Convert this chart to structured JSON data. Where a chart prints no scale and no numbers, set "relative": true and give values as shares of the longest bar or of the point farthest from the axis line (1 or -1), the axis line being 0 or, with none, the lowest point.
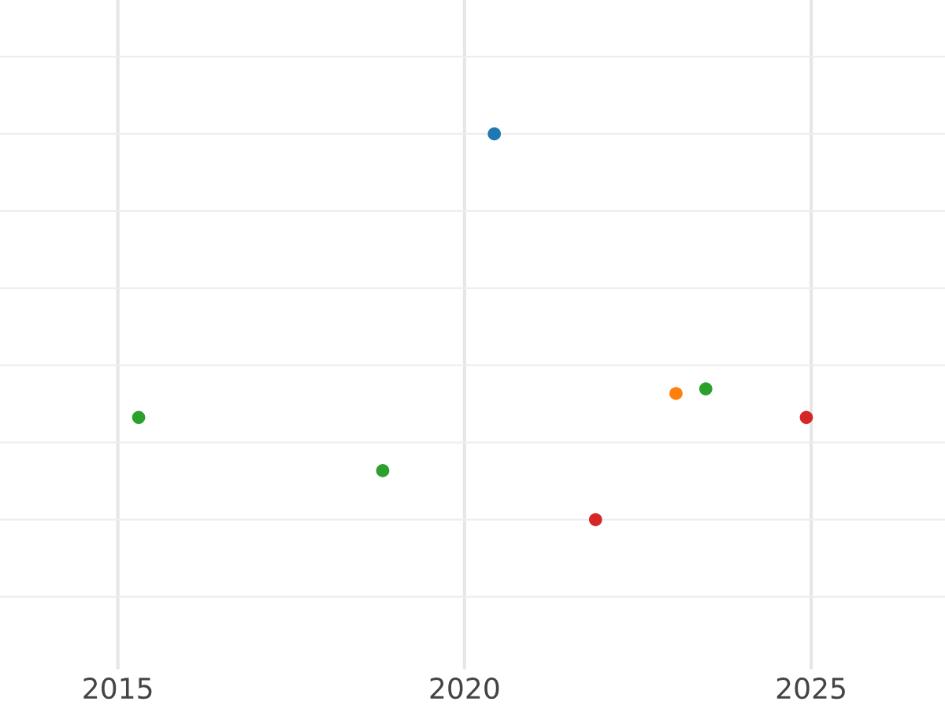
{
  "chart_data": {
    "type": "scatter",
    "relative": true,
    "xlim": [
      2013.3,
      2026.93
    ],
    "xticks": [
      2015,
      2020,
      2025
    ],
    "tick_labels": "x",
    "grid": true,
    "marker": "circle",
    "series": [
      {
        "color": "#1f77b4",
        "x": [
          2020.43
        ],
        "values": [
          1.0
        ]
      },
      {
        "color": "#ff7f0e",
        "x": [
          2023.05
        ],
        "values": [
          0.327
        ]
      },
      {
        "color": "#2ca02c",
        "x": [
          2015.3,
          2018.82,
          2023.48
        ],
        "values": [
          0.265,
          0.127,
          0.339
        ]
      },
      {
        "color": "#d62728",
        "x": [
          2021.89,
          2024.93
        ],
        "values": [
          0,
          0.265
        ]
      }
    ]
  }
}
